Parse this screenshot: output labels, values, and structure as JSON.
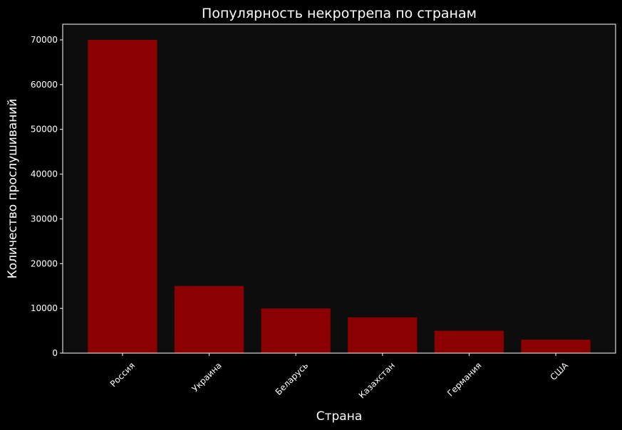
{
  "chart_data": {
    "type": "bar",
    "title": "Популярность некротрепа по странам",
    "xlabel": "Страна",
    "ylabel": "Количество прослушиваний",
    "categories": [
      "Россия",
      "Украина",
      "Беларусь",
      "Казахстан",
      "Германия",
      "США"
    ],
    "values": [
      70000,
      15000,
      10000,
      8000,
      5000,
      3000
    ],
    "color": "#8b0000",
    "ylim": [
      0,
      73500
    ],
    "yticks": [
      0,
      10000,
      20000,
      30000,
      40000,
      50000,
      60000,
      70000
    ]
  }
}
